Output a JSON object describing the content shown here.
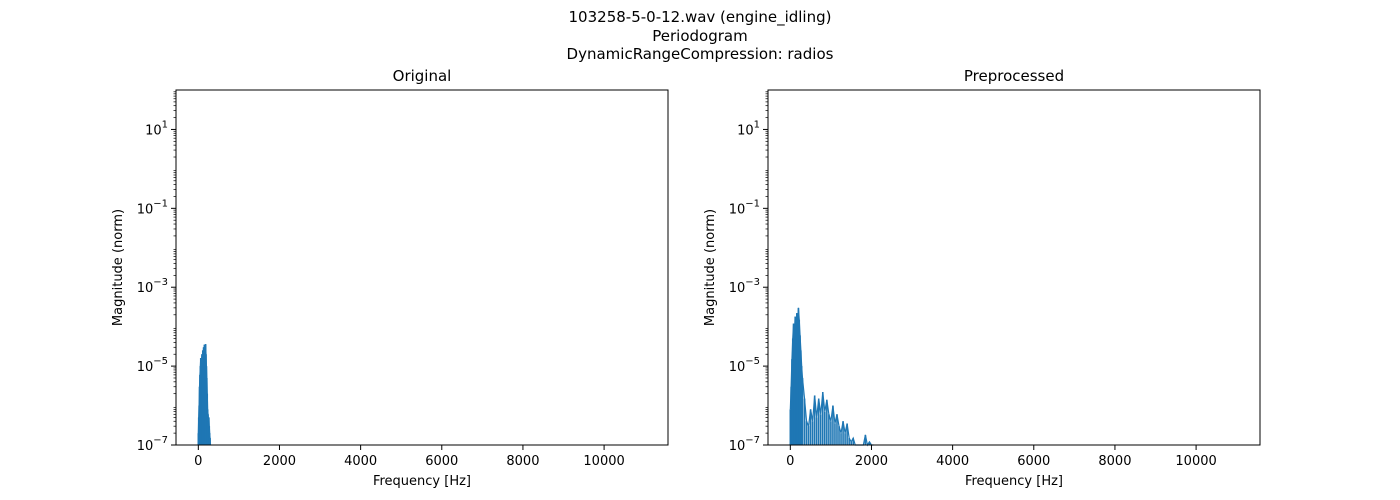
{
  "figure": {
    "title_lines": [
      "103258-5-0-12.wav (engine_idling)",
      "Periodogram",
      "DynamicRangeCompression: radios"
    ]
  },
  "chart_data": [
    {
      "type": "line",
      "title": "Original",
      "xlabel": "Frequency [Hz]",
      "ylabel": "Magnitude (norm)",
      "xlim": [
        -550,
        11575
      ],
      "ylim": [
        1e-07,
        100
      ],
      "yscale": "log",
      "grid": false,
      "xticks": [
        0,
        2000,
        4000,
        6000,
        8000,
        10000
      ],
      "xtick_labels": [
        "0",
        "2000",
        "4000",
        "6000",
        "8000",
        "10000"
      ],
      "yticks": [
        1e-07,
        1e-05,
        0.001,
        0.1,
        10
      ],
      "ytick_labels": [
        {
          "base": "10",
          "exp": "−7"
        },
        {
          "base": "10",
          "exp": "−5"
        },
        {
          "base": "10",
          "exp": "−3"
        },
        {
          "base": "10",
          "exp": "−1"
        },
        {
          "base": "10",
          "exp": "1"
        }
      ],
      "series": [
        {
          "color": "#1f77b4",
          "x": [
            0,
            10,
            20,
            30,
            40,
            50,
            60,
            70,
            80,
            90,
            100,
            110,
            120,
            130,
            140,
            150,
            160,
            170,
            180,
            190,
            200,
            210,
            220,
            230,
            240,
            250,
            260,
            270,
            280,
            290,
            300
          ],
          "y": [
            2e-07,
            5e-07,
            1e-06,
            3e-06,
            6e-06,
            1e-05,
            1.6e-05,
            8e-06,
            1.5e-05,
            2e-05,
            1.2e-05,
            2.5e-05,
            1.8e-05,
            3e-05,
            2.2e-05,
            3.5e-05,
            2.8e-05,
            3.2e-05,
            3.6e-05,
            2e-05,
            1e-05,
            5e-06,
            2e-06,
            8e-07,
            6e-07,
            4e-07,
            5e-07,
            3e-07,
            2e-07,
            1.5e-07,
            1e-07
          ]
        }
      ]
    },
    {
      "type": "line",
      "title": "Preprocessed",
      "xlabel": "Frequency [Hz]",
      "ylabel": "Magnitude (norm)",
      "xlim": [
        -550,
        11575
      ],
      "ylim": [
        1e-07,
        100
      ],
      "yscale": "log",
      "grid": false,
      "xticks": [
        0,
        2000,
        4000,
        6000,
        8000,
        10000
      ],
      "xtick_labels": [
        "0",
        "2000",
        "4000",
        "6000",
        "8000",
        "10000"
      ],
      "yticks": [
        1e-07,
        1e-05,
        0.001,
        0.1,
        10
      ],
      "ytick_labels": [
        {
          "base": "10",
          "exp": "−7"
        },
        {
          "base": "10",
          "exp": "−5"
        },
        {
          "base": "10",
          "exp": "−3"
        },
        {
          "base": "10",
          "exp": "−1"
        },
        {
          "base": "10",
          "exp": "1"
        }
      ],
      "series": [
        {
          "color": "#1f77b4",
          "x": [
            0,
            20,
            40,
            60,
            80,
            100,
            120,
            140,
            160,
            180,
            200,
            220,
            240,
            260,
            280,
            300,
            350,
            400,
            450,
            500,
            550,
            600,
            650,
            700,
            750,
            800,
            850,
            900,
            950,
            1000,
            1050,
            1100,
            1150,
            1200,
            1250,
            1300,
            1350,
            1400,
            1450,
            1500,
            1550,
            1600,
            1650,
            1700,
            1750,
            1800,
            1850,
            1900,
            1950,
            2000,
            2050
          ],
          "y": [
            8e-07,
            3e-06,
            1.5e-05,
            5e-05,
            0.00012,
            6e-05,
            0.00018,
            8e-05,
            0.00022,
            0.00012,
            0.0003,
            0.00015,
            6e-05,
            2.5e-05,
            1e-05,
            5e-06,
            1.5e-06,
            4e-07,
            3e-07,
            8e-07,
            4e-07,
            1.8e-06,
            5e-07,
            1.5e-06,
            6e-07,
            2.2e-06,
            7e-07,
            1.4e-06,
            6e-07,
            4e-07,
            1e-06,
            3.5e-07,
            6e-07,
            3e-07,
            2e-07,
            4e-07,
            2e-07,
            3.5e-07,
            1.5e-07,
            1.2e-07,
            1.5e-07,
            1e-07,
            1e-07,
            1e-07,
            1e-07,
            1e-07,
            1.8e-07,
            1e-07,
            1.2e-07,
            1e-07,
            1e-07
          ]
        }
      ]
    }
  ]
}
